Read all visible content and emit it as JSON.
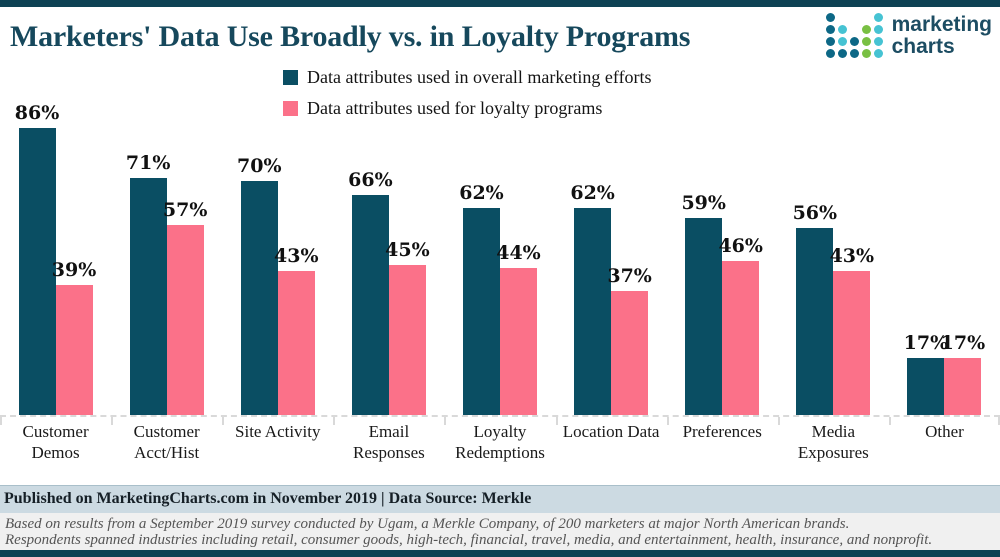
{
  "header": {
    "title": "Marketers' Data Use Broadly vs. in Loyalty Programs",
    "logo": {
      "line1": "marketing",
      "line2": "charts",
      "dot_colors": {
        "dark": "#0d6886",
        "light": "#46c3d3",
        "green": "#79c043"
      },
      "dot_pattern": [
        [
          "dark",
          null,
          null,
          null,
          "light"
        ],
        [
          "dark",
          "light",
          null,
          "green",
          "light"
        ],
        [
          "dark",
          "light",
          "dark",
          "green",
          "light"
        ],
        [
          "dark",
          "dark",
          "dark",
          "green",
          "light"
        ]
      ]
    }
  },
  "chart_data": {
    "type": "bar",
    "title": "Marketers' Data Use Broadly vs. in Loyalty Programs",
    "categories": [
      "Customer Demos",
      "Customer Acct/Hist",
      "Site Activity",
      "Email Responses",
      "Loyalty Redemptions",
      "Location Data",
      "Preferences",
      "Media Exposures",
      "Other"
    ],
    "series": [
      {
        "name": "Data attributes used in overall marketing efforts",
        "color": "#0a4e63",
        "values": [
          86,
          71,
          70,
          66,
          62,
          62,
          59,
          56,
          17
        ]
      },
      {
        "name": "Data attributes used for loyalty programs",
        "color": "#fb7189",
        "values": [
          39,
          57,
          43,
          45,
          44,
          37,
          46,
          43,
          17
        ]
      }
    ],
    "value_suffix": "%",
    "ylim": [
      0,
      100
    ],
    "grid": false,
    "axes": "hidden; dashed baseline with category tick separators",
    "legend_position": "top-center-inside",
    "data_labels": true
  },
  "footer": {
    "published": "Published on MarketingCharts.com in November 2019 | Data Source: Merkle",
    "note1": "Based on results from a September 2019 survey conducted by Ugam, a Merkle Company, of 200 marketers at major North American brands.",
    "note2": "Respondents spanned industries including retail, consumer goods, high-tech, financial, travel, media, and entertainment, health, insurance, and nonprofit."
  },
  "colors": {
    "accent_border": "#0e4254",
    "title_text": "#16485c",
    "bar_overall": "#0a4e63",
    "bar_loyalty": "#fb7189",
    "published_bg": "#ccdae2",
    "footnote_bg": "#f0f0f0",
    "baseline_dash": "#d9d9d9"
  }
}
